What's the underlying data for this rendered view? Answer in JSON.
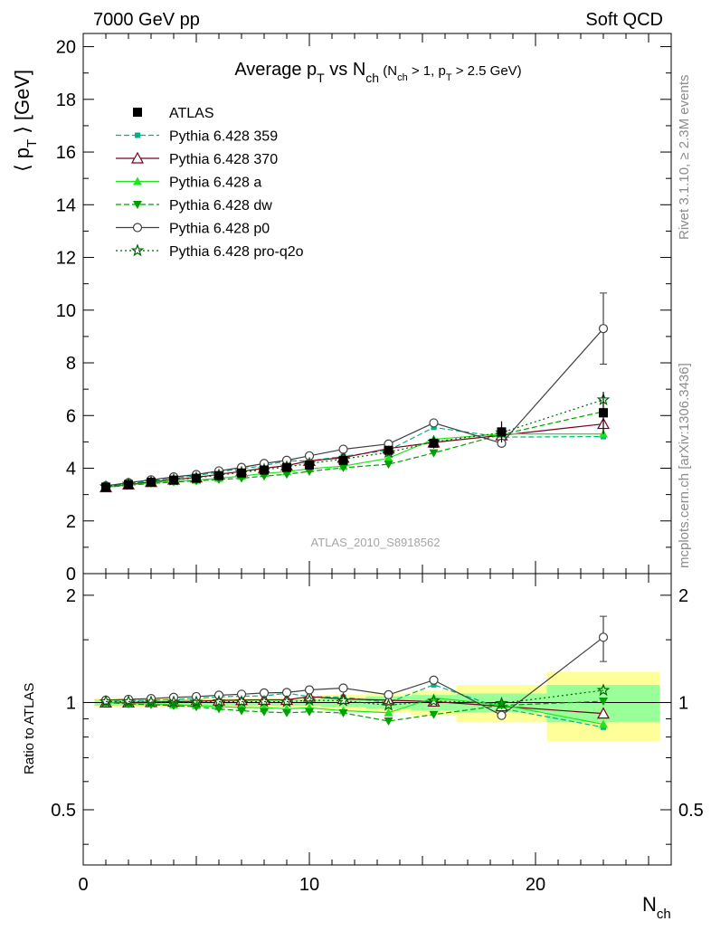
{
  "header": {
    "left": "7000 GeV pp",
    "right": "Soft QCD"
  },
  "title": {
    "main": "Average p",
    "main_sub": "T",
    "vs": " vs N",
    "vs_sub": "ch",
    "cut_open": " (N",
    "cut_sub1": "ch",
    "cut_mid": " > 1, p",
    "cut_sub2": "T",
    "cut_close": " > 2.5 GeV)"
  },
  "side": {
    "rivet": "Rivet 3.1.10, ≥ 2.3M events",
    "mcplots": "mcplots.cern.ch [arXiv:1306.3436]"
  },
  "watermark": "ATLAS_2010_S8918562",
  "ylabel": {
    "open": "⟨ p",
    "sub": "T",
    "close": " ⟩  [GeV]"
  },
  "ratio_ylabel": "Ratio to ATLAS",
  "xlabel": {
    "main": "N",
    "sub": "ch"
  },
  "colors": {
    "atlas": "#000000",
    "p359": "#00b387",
    "p370": "#7a0020",
    "pa": "#1ee61e",
    "pdw": "#00a000",
    "pp0": "#404040",
    "pq2o": "#006400",
    "band_yellow": "#ffff99",
    "band_green": "#99ff99"
  },
  "chart_data": {
    "type": "line",
    "xlim": [
      0,
      26
    ],
    "ylim": [
      0,
      20.5
    ],
    "ratio_ylim": [
      0.35,
      2.3
    ],
    "ratio_log": true,
    "xticks": [
      "0",
      "10",
      "20"
    ],
    "yticks": [
      "0",
      "2",
      "4",
      "6",
      "8",
      "10",
      "12",
      "14",
      "16",
      "18",
      "20"
    ],
    "ratio_yticks": [
      "0.5",
      "1",
      "2"
    ],
    "legend_position": "top-left",
    "x": [
      1,
      2,
      3,
      4,
      5,
      6,
      7,
      8,
      9,
      10,
      11.5,
      13.5,
      15.5,
      18.5,
      23
    ],
    "x_edges": [
      0.5,
      1.5,
      2.5,
      3.5,
      4.5,
      5.5,
      6.5,
      7.5,
      8.5,
      9.5,
      10.5,
      12.5,
      14.5,
      16.5,
      20.5,
      25.5
    ],
    "atlas_err": [
      0.02,
      0.02,
      0.02,
      0.03,
      0.04,
      0.05,
      0.06,
      0.07,
      0.08,
      0.09,
      0.1,
      0.15,
      0.2,
      0.4,
      0.8
    ],
    "band_inner": [
      0.02,
      0.02,
      0.02,
      0.02,
      0.02,
      0.02,
      0.02,
      0.02,
      0.02,
      0.02,
      0.03,
      0.04,
      0.05,
      0.06,
      0.12
    ],
    "band_outer": [
      0.03,
      0.03,
      0.03,
      0.03,
      0.03,
      0.03,
      0.03,
      0.03,
      0.03,
      0.03,
      0.05,
      0.06,
      0.08,
      0.12,
      0.22
    ],
    "series": [
      {
        "name": "ATLAS",
        "key": "atlas",
        "marker": "square",
        "dash": "none",
        "line": false,
        "values": [
          3.28,
          3.38,
          3.47,
          3.55,
          3.62,
          3.72,
          3.82,
          3.93,
          4.03,
          4.12,
          4.3,
          4.68,
          4.95,
          5.38,
          6.1
        ]
      },
      {
        "name": "Pythia 6.428 359",
        "key": "p359",
        "marker": "square-small",
        "dash": "6,3",
        "line": true,
        "values": [
          3.3,
          3.42,
          3.52,
          3.62,
          3.72,
          3.86,
          3.98,
          4.1,
          4.28,
          4.28,
          4.45,
          4.68,
          5.55,
          5.18,
          5.2
        ]
      },
      {
        "name": "Pythia 6.428 370",
        "key": "p370",
        "marker": "triangle-open",
        "dash": "none",
        "line": true,
        "values": [
          3.28,
          3.38,
          3.48,
          3.57,
          3.65,
          3.77,
          3.88,
          4.0,
          4.1,
          4.28,
          4.4,
          4.75,
          4.98,
          5.25,
          5.68
        ]
      },
      {
        "name": "Pythia 6.428 a",
        "key": "pa",
        "marker": "triangle",
        "dash": "none",
        "line": true,
        "values": [
          3.28,
          3.36,
          3.44,
          3.5,
          3.55,
          3.62,
          3.7,
          3.8,
          3.87,
          3.98,
          4.08,
          4.38,
          5.1,
          5.3,
          5.3
        ]
      },
      {
        "name": "Pythia 6.428 dw",
        "key": "pdw",
        "marker": "triangle-down",
        "dash": "6,3",
        "line": true,
        "values": [
          3.28,
          3.35,
          3.42,
          3.48,
          3.52,
          3.57,
          3.62,
          3.7,
          3.77,
          3.88,
          4.02,
          4.15,
          4.58,
          5.28,
          6.15
        ]
      },
      {
        "name": "Pythia 6.428 p0",
        "key": "pp0",
        "marker": "circle-open",
        "dash": "none",
        "line": true,
        "values": [
          3.33,
          3.45,
          3.56,
          3.67,
          3.76,
          3.9,
          4.03,
          4.18,
          4.3,
          4.47,
          4.72,
          4.92,
          5.72,
          4.95,
          9.3
        ]
      },
      {
        "name": "Pythia 6.428 pro-q2o",
        "key": "pq2o",
        "marker": "star",
        "dash": "2,3",
        "line": true,
        "values": [
          3.3,
          3.4,
          3.48,
          3.56,
          3.63,
          3.74,
          3.84,
          3.95,
          4.05,
          4.18,
          4.35,
          4.6,
          5.0,
          5.35,
          6.6
        ]
      }
    ]
  }
}
